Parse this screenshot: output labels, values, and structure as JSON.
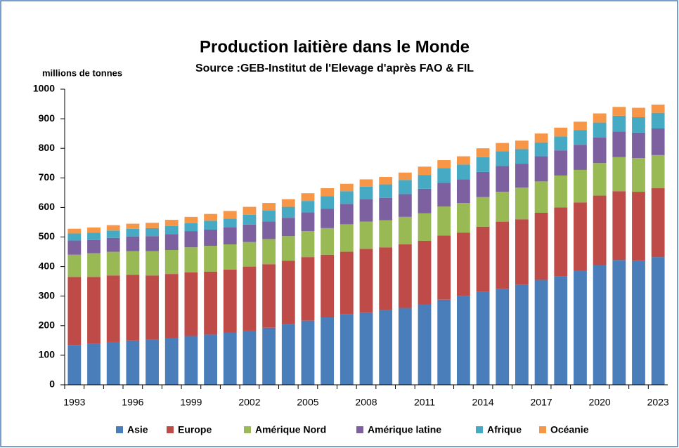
{
  "chart_data": {
    "type": "stacked_bar",
    "title": "Production laitière dans le Monde",
    "subtitle": "Source :GEB-Institut de l'Elevage d'après FAO & FIL",
    "y_label": "millions de tonnes",
    "categories": [
      "1993",
      null,
      null,
      "1996",
      null,
      null,
      "1999",
      null,
      null,
      "2002",
      null,
      null,
      "2005",
      null,
      null,
      "2008",
      null,
      null,
      "2011",
      null,
      null,
      "2014",
      null,
      null,
      "2017",
      null,
      null,
      "2020",
      null,
      null,
      "2023"
    ],
    "series": [
      {
        "name": "Asie",
        "color": "#4a7ebb",
        "values": [
          135,
          140,
          145,
          150,
          153,
          158,
          165,
          170,
          177,
          183,
          193,
          205,
          217,
          228,
          238,
          245,
          252,
          260,
          272,
          288,
          300,
          315,
          325,
          338,
          355,
          368,
          385,
          405,
          422,
          420,
          432
        ]
      },
      {
        "name": "Europe",
        "color": "#be4b48",
        "values": [
          230,
          225,
          225,
          222,
          217,
          217,
          215,
          213,
          213,
          217,
          215,
          215,
          215,
          212,
          212,
          215,
          213,
          215,
          215,
          217,
          215,
          220,
          227,
          222,
          227,
          232,
          232,
          235,
          233,
          233,
          233
        ]
      },
      {
        "name": "Amérique Nord",
        "color": "#98b954",
        "values": [
          75,
          80,
          80,
          80,
          82,
          81,
          85,
          87,
          85,
          83,
          85,
          83,
          88,
          90,
          93,
          92,
          92,
          93,
          93,
          98,
          100,
          100,
          101,
          107,
          106,
          108,
          110,
          110,
          115,
          114,
          112
        ]
      },
      {
        "name": "Amérique latine",
        "color": "#7d60a0",
        "values": [
          48,
          45,
          47,
          50,
          51,
          54,
          55,
          55,
          58,
          59,
          60,
          62,
          63,
          65,
          69,
          76,
          75,
          77,
          83,
          80,
          80,
          85,
          87,
          81,
          85,
          85,
          85,
          87,
          87,
          86,
          90
        ]
      },
      {
        "name": "Afrique",
        "color": "#46aac5",
        "values": [
          24,
          25,
          25,
          26,
          27,
          27,
          27,
          30,
          29,
          33,
          37,
          37,
          39,
          43,
          43,
          42,
          46,
          48,
          47,
          50,
          50,
          50,
          50,
          49,
          47,
          47,
          50,
          50,
          53,
          52,
          53
        ]
      },
      {
        "name": "Océanie",
        "color": "#f79646",
        "values": [
          16,
          17,
          18,
          17,
          18,
          21,
          21,
          23,
          26,
          27,
          25,
          26,
          26,
          27,
          25,
          25,
          25,
          25,
          28,
          27,
          28,
          30,
          28,
          29,
          30,
          30,
          28,
          31,
          30,
          32,
          28
        ]
      }
    ],
    "ylim": [
      0,
      1000
    ],
    "yticks": [
      0,
      100,
      200,
      300,
      400,
      500,
      600,
      700,
      800,
      900,
      1000
    ],
    "grid": false
  }
}
